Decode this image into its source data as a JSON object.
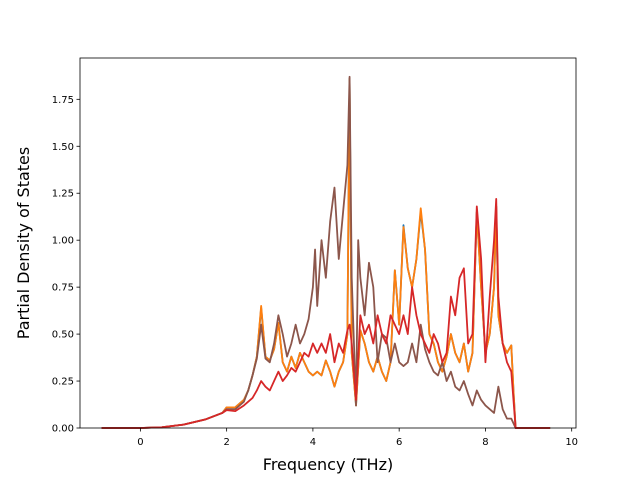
{
  "chart_data": {
    "type": "line",
    "title": "",
    "xlabel": "Frequency (THz)",
    "ylabel": "Partial Density of States",
    "xlim": [
      -1.4,
      10.1
    ],
    "ylim": [
      0.0,
      1.97
    ],
    "xticks": [
      0,
      2,
      4,
      6,
      8,
      10
    ],
    "yticks": [
      0.0,
      0.25,
      0.5,
      0.75,
      1.0,
      1.25,
      1.5,
      1.75
    ],
    "xtick_labels": [
      "0",
      "2",
      "4",
      "6",
      "8",
      "10"
    ],
    "ytick_labels": [
      "0.00",
      "0.25",
      "0.50",
      "0.75",
      "1.00",
      "1.25",
      "1.50",
      "1.75"
    ],
    "grid": false,
    "legend": "none",
    "series": [
      {
        "color": "#1f77b4",
        "points": [
          [
            -0.9,
            0
          ],
          [
            0,
            0
          ],
          [
            0.5,
            0.004
          ],
          [
            1.0,
            0.018
          ],
          [
            1.5,
            0.045
          ],
          [
            1.9,
            0.08
          ],
          [
            2.0,
            0.11
          ],
          [
            2.2,
            0.11
          ],
          [
            2.4,
            0.15
          ],
          [
            2.5,
            0.2
          ],
          [
            2.6,
            0.28
          ],
          [
            2.7,
            0.38
          ],
          [
            2.8,
            0.64
          ],
          [
            2.9,
            0.38
          ],
          [
            3.0,
            0.36
          ],
          [
            3.1,
            0.42
          ],
          [
            3.2,
            0.56
          ],
          [
            3.3,
            0.35
          ],
          [
            3.4,
            0.3
          ],
          [
            3.5,
            0.38
          ],
          [
            3.6,
            0.32
          ],
          [
            3.7,
            0.4
          ],
          [
            3.8,
            0.35
          ],
          [
            3.9,
            0.3
          ],
          [
            4.0,
            0.28
          ],
          [
            4.1,
            0.3
          ],
          [
            4.2,
            0.28
          ],
          [
            4.3,
            0.36
          ],
          [
            4.4,
            0.3
          ],
          [
            4.5,
            0.22
          ],
          [
            4.6,
            0.3
          ],
          [
            4.7,
            0.35
          ],
          [
            4.8,
            0.5
          ],
          [
            4.85,
            1.86
          ],
          [
            4.9,
            0.4
          ],
          [
            5.0,
            0.12
          ],
          [
            5.1,
            0.52
          ],
          [
            5.2,
            0.45
          ],
          [
            5.3,
            0.35
          ],
          [
            5.4,
            0.3
          ],
          [
            5.5,
            0.38
          ],
          [
            5.6,
            0.3
          ],
          [
            5.7,
            0.25
          ],
          [
            5.8,
            0.35
          ],
          [
            5.9,
            0.84
          ],
          [
            6.0,
            0.55
          ],
          [
            6.1,
            1.08
          ],
          [
            6.2,
            0.85
          ],
          [
            6.3,
            0.75
          ],
          [
            6.4,
            0.9
          ],
          [
            6.5,
            1.15
          ],
          [
            6.6,
            0.95
          ],
          [
            6.7,
            0.5
          ],
          [
            6.8,
            0.45
          ],
          [
            6.9,
            0.35
          ],
          [
            7.0,
            0.3
          ],
          [
            7.1,
            0.38
          ],
          [
            7.2,
            0.5
          ],
          [
            7.3,
            0.4
          ],
          [
            7.4,
            0.35
          ],
          [
            7.5,
            0.45
          ],
          [
            7.6,
            0.3
          ],
          [
            7.7,
            0.4
          ],
          [
            7.8,
            1.15
          ],
          [
            7.9,
            0.75
          ],
          [
            8.0,
            0.4
          ],
          [
            8.1,
            0.5
          ],
          [
            8.2,
            0.75
          ],
          [
            8.25,
            1.18
          ],
          [
            8.3,
            0.6
          ],
          [
            8.4,
            0.45
          ],
          [
            8.5,
            0.4
          ],
          [
            8.6,
            0.44
          ],
          [
            8.65,
            0.2
          ],
          [
            8.7,
            0.0
          ],
          [
            9.5,
            0.0
          ]
        ]
      },
      {
        "color": "#ff7f0e",
        "points": [
          [
            -0.9,
            0
          ],
          [
            0,
            0
          ],
          [
            0.5,
            0.004
          ],
          [
            1.0,
            0.018
          ],
          [
            1.5,
            0.045
          ],
          [
            1.9,
            0.08
          ],
          [
            2.0,
            0.11
          ],
          [
            2.2,
            0.11
          ],
          [
            2.4,
            0.15
          ],
          [
            2.5,
            0.2
          ],
          [
            2.6,
            0.28
          ],
          [
            2.7,
            0.38
          ],
          [
            2.8,
            0.65
          ],
          [
            2.9,
            0.38
          ],
          [
            3.0,
            0.36
          ],
          [
            3.1,
            0.42
          ],
          [
            3.2,
            0.56
          ],
          [
            3.3,
            0.35
          ],
          [
            3.4,
            0.3
          ],
          [
            3.5,
            0.38
          ],
          [
            3.6,
            0.32
          ],
          [
            3.7,
            0.4
          ],
          [
            3.8,
            0.35
          ],
          [
            3.9,
            0.3
          ],
          [
            4.0,
            0.28
          ],
          [
            4.1,
            0.3
          ],
          [
            4.2,
            0.28
          ],
          [
            4.3,
            0.36
          ],
          [
            4.4,
            0.3
          ],
          [
            4.5,
            0.22
          ],
          [
            4.6,
            0.3
          ],
          [
            4.7,
            0.35
          ],
          [
            4.8,
            0.5
          ],
          [
            4.85,
            1.86
          ],
          [
            4.9,
            0.4
          ],
          [
            5.0,
            0.12
          ],
          [
            5.1,
            0.52
          ],
          [
            5.2,
            0.45
          ],
          [
            5.3,
            0.35
          ],
          [
            5.4,
            0.3
          ],
          [
            5.5,
            0.38
          ],
          [
            5.6,
            0.3
          ],
          [
            5.7,
            0.25
          ],
          [
            5.8,
            0.35
          ],
          [
            5.9,
            0.84
          ],
          [
            6.0,
            0.55
          ],
          [
            6.1,
            1.07
          ],
          [
            6.2,
            0.85
          ],
          [
            6.3,
            0.75
          ],
          [
            6.4,
            0.9
          ],
          [
            6.5,
            1.17
          ],
          [
            6.6,
            0.95
          ],
          [
            6.7,
            0.5
          ],
          [
            6.8,
            0.45
          ],
          [
            6.9,
            0.35
          ],
          [
            7.0,
            0.3
          ],
          [
            7.1,
            0.38
          ],
          [
            7.2,
            0.5
          ],
          [
            7.3,
            0.4
          ],
          [
            7.4,
            0.35
          ],
          [
            7.5,
            0.45
          ],
          [
            7.6,
            0.3
          ],
          [
            7.7,
            0.4
          ],
          [
            7.8,
            1.15
          ],
          [
            7.9,
            0.75
          ],
          [
            8.0,
            0.4
          ],
          [
            8.1,
            0.5
          ],
          [
            8.2,
            0.75
          ],
          [
            8.25,
            1.18
          ],
          [
            8.3,
            0.6
          ],
          [
            8.4,
            0.45
          ],
          [
            8.5,
            0.4
          ],
          [
            8.6,
            0.44
          ],
          [
            8.65,
            0.2
          ],
          [
            8.7,
            0.0
          ],
          [
            9.5,
            0.0
          ]
        ]
      },
      {
        "color": "#8c564b",
        "points": [
          [
            -0.9,
            0
          ],
          [
            0,
            0
          ],
          [
            0.5,
            0.004
          ],
          [
            1.0,
            0.018
          ],
          [
            1.5,
            0.045
          ],
          [
            1.9,
            0.08
          ],
          [
            2.0,
            0.1
          ],
          [
            2.2,
            0.1
          ],
          [
            2.4,
            0.14
          ],
          [
            2.5,
            0.2
          ],
          [
            2.6,
            0.28
          ],
          [
            2.7,
            0.37
          ],
          [
            2.8,
            0.55
          ],
          [
            2.9,
            0.37
          ],
          [
            3.0,
            0.35
          ],
          [
            3.1,
            0.45
          ],
          [
            3.2,
            0.6
          ],
          [
            3.3,
            0.5
          ],
          [
            3.4,
            0.38
          ],
          [
            3.5,
            0.45
          ],
          [
            3.6,
            0.55
          ],
          [
            3.7,
            0.45
          ],
          [
            3.8,
            0.5
          ],
          [
            3.9,
            0.58
          ],
          [
            4.0,
            0.75
          ],
          [
            4.05,
            0.95
          ],
          [
            4.1,
            0.65
          ],
          [
            4.2,
            1.0
          ],
          [
            4.3,
            0.8
          ],
          [
            4.4,
            1.1
          ],
          [
            4.5,
            1.28
          ],
          [
            4.6,
            0.9
          ],
          [
            4.7,
            1.15
          ],
          [
            4.8,
            1.4
          ],
          [
            4.85,
            1.87
          ],
          [
            4.9,
            0.8
          ],
          [
            5.0,
            0.12
          ],
          [
            5.05,
            1.0
          ],
          [
            5.1,
            0.8
          ],
          [
            5.2,
            0.6
          ],
          [
            5.3,
            0.88
          ],
          [
            5.4,
            0.75
          ],
          [
            5.5,
            0.35
          ],
          [
            5.6,
            0.5
          ],
          [
            5.7,
            0.48
          ],
          [
            5.8,
            0.35
          ],
          [
            5.9,
            0.45
          ],
          [
            6.0,
            0.35
          ],
          [
            6.1,
            0.33
          ],
          [
            6.2,
            0.35
          ],
          [
            6.3,
            0.45
          ],
          [
            6.4,
            0.35
          ],
          [
            6.5,
            0.55
          ],
          [
            6.6,
            0.42
          ],
          [
            6.7,
            0.35
          ],
          [
            6.8,
            0.3
          ],
          [
            6.9,
            0.28
          ],
          [
            7.0,
            0.35
          ],
          [
            7.1,
            0.25
          ],
          [
            7.2,
            0.3
          ],
          [
            7.3,
            0.22
          ],
          [
            7.4,
            0.2
          ],
          [
            7.5,
            0.25
          ],
          [
            7.6,
            0.18
          ],
          [
            7.7,
            0.12
          ],
          [
            7.8,
            0.2
          ],
          [
            7.9,
            0.15
          ],
          [
            8.0,
            0.12
          ],
          [
            8.1,
            0.1
          ],
          [
            8.2,
            0.08
          ],
          [
            8.3,
            0.22
          ],
          [
            8.4,
            0.1
          ],
          [
            8.5,
            0.05
          ],
          [
            8.6,
            0.05
          ],
          [
            8.7,
            0.0
          ],
          [
            9.5,
            0.0
          ]
        ]
      },
      {
        "color": "#d62728",
        "points": [
          [
            -0.9,
            0
          ],
          [
            0,
            0
          ],
          [
            0.5,
            0.004
          ],
          [
            1.0,
            0.018
          ],
          [
            1.5,
            0.045
          ],
          [
            1.9,
            0.08
          ],
          [
            2.0,
            0.095
          ],
          [
            2.2,
            0.09
          ],
          [
            2.4,
            0.12
          ],
          [
            2.5,
            0.14
          ],
          [
            2.6,
            0.16
          ],
          [
            2.7,
            0.2
          ],
          [
            2.8,
            0.25
          ],
          [
            2.9,
            0.22
          ],
          [
            3.0,
            0.2
          ],
          [
            3.1,
            0.25
          ],
          [
            3.2,
            0.3
          ],
          [
            3.3,
            0.25
          ],
          [
            3.4,
            0.28
          ],
          [
            3.5,
            0.32
          ],
          [
            3.6,
            0.3
          ],
          [
            3.7,
            0.35
          ],
          [
            3.8,
            0.4
          ],
          [
            3.9,
            0.38
          ],
          [
            4.0,
            0.45
          ],
          [
            4.1,
            0.4
          ],
          [
            4.2,
            0.45
          ],
          [
            4.3,
            0.4
          ],
          [
            4.4,
            0.5
          ],
          [
            4.5,
            0.35
          ],
          [
            4.6,
            0.45
          ],
          [
            4.7,
            0.4
          ],
          [
            4.8,
            0.52
          ],
          [
            4.85,
            0.55
          ],
          [
            4.9,
            0.45
          ],
          [
            5.0,
            0.15
          ],
          [
            5.1,
            0.6
          ],
          [
            5.2,
            0.5
          ],
          [
            5.3,
            0.55
          ],
          [
            5.4,
            0.45
          ],
          [
            5.5,
            0.6
          ],
          [
            5.6,
            0.5
          ],
          [
            5.7,
            0.45
          ],
          [
            5.8,
            0.6
          ],
          [
            5.9,
            0.55
          ],
          [
            6.0,
            0.5
          ],
          [
            6.1,
            0.6
          ],
          [
            6.2,
            0.5
          ],
          [
            6.3,
            0.75
          ],
          [
            6.4,
            0.6
          ],
          [
            6.5,
            0.5
          ],
          [
            6.6,
            0.45
          ],
          [
            6.7,
            0.4
          ],
          [
            6.8,
            0.5
          ],
          [
            6.9,
            0.45
          ],
          [
            7.0,
            0.35
          ],
          [
            7.1,
            0.4
          ],
          [
            7.2,
            0.7
          ],
          [
            7.3,
            0.6
          ],
          [
            7.4,
            0.8
          ],
          [
            7.5,
            0.85
          ],
          [
            7.6,
            0.45
          ],
          [
            7.7,
            0.5
          ],
          [
            7.8,
            1.18
          ],
          [
            7.9,
            0.9
          ],
          [
            8.0,
            0.35
          ],
          [
            8.1,
            0.7
          ],
          [
            8.2,
            1.0
          ],
          [
            8.25,
            1.22
          ],
          [
            8.3,
            0.7
          ],
          [
            8.4,
            0.45
          ],
          [
            8.5,
            0.35
          ],
          [
            8.6,
            0.3
          ],
          [
            8.65,
            0.15
          ],
          [
            8.7,
            0.0
          ],
          [
            9.5,
            0.0
          ]
        ]
      }
    ]
  }
}
